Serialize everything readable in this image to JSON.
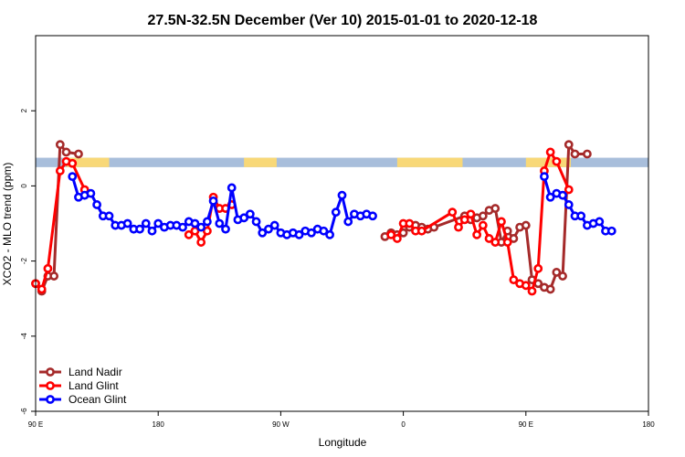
{
  "chart_data": {
    "type": "line",
    "title": "27.5N-32.5N December (Ver 10)   2015-01-01 to 2020-12-18",
    "xlabel": "Longitude",
    "ylabel": "XCO2 - MLO trend (ppm)",
    "xlim": [
      -90,
      210
    ],
    "ylim": [
      -6,
      4
    ],
    "xticks": [
      {
        "value": -90,
        "label": "90 E"
      },
      {
        "value": -30,
        "label": "180"
      },
      {
        "value": 30,
        "label": "90 W"
      },
      {
        "value": 90,
        "label": "0"
      },
      {
        "value": 150,
        "label": "90 E"
      },
      {
        "value": 210,
        "label": "180"
      }
    ],
    "yticks": [
      {
        "value": -6,
        "label": "-6"
      },
      {
        "value": -4,
        "label": "-4"
      },
      {
        "value": -2,
        "label": "-2"
      },
      {
        "value": 0,
        "label": "0"
      },
      {
        "value": 2,
        "label": "2"
      }
    ],
    "grid": false,
    "legend_position": "bottom-left",
    "background_band": {
      "y_range": [
        0.5,
        0.75
      ],
      "ocean_color": "#a8bedb",
      "land_color": "#f8d878",
      "land_segments": [
        [
          -75,
          -54
        ],
        [
          12,
          28
        ],
        [
          87,
          119
        ],
        [
          150,
          172
        ]
      ]
    },
    "series": [
      {
        "name": "Land Nadir",
        "color": "#a52a2a",
        "points": [
          [
            -90,
            -2.6
          ],
          [
            -87,
            -2.8
          ],
          [
            -84,
            -2.4
          ],
          [
            -81,
            -2.4
          ],
          [
            -78,
            1.1
          ],
          [
            -75,
            0.9
          ],
          [
            -69,
            0.85
          ],
          [
            81,
            -1.35
          ],
          [
            84,
            -1.25
          ],
          [
            87,
            -1.3
          ],
          [
            90,
            -1.25
          ],
          [
            93,
            -1.1
          ],
          [
            96,
            -1.05
          ],
          [
            99,
            -1.1
          ],
          [
            102,
            -1.15
          ],
          [
            105,
            -1.1
          ],
          [
            120,
            -0.8
          ],
          [
            123,
            -0.9
          ],
          [
            126,
            -0.85
          ],
          [
            129,
            -0.8
          ],
          [
            132,
            -0.65
          ],
          [
            135,
            -0.6
          ],
          [
            138,
            -1.5
          ],
          [
            141,
            -1.2
          ],
          [
            144,
            -1.4
          ],
          [
            147,
            -1.1
          ],
          [
            150,
            -1.05
          ],
          [
            153,
            -2.5
          ],
          [
            156,
            -2.6
          ],
          [
            159,
            -2.7
          ],
          [
            162,
            -2.75
          ],
          [
            165,
            -2.3
          ],
          [
            168,
            -2.4
          ],
          [
            171,
            1.1
          ],
          [
            174,
            0.85
          ],
          [
            180,
            0.85
          ]
        ]
      },
      {
        "name": "Land Glint",
        "color": "#ff0000",
        "points": [
          [
            -90,
            -2.6
          ],
          [
            -87,
            -2.75
          ],
          [
            -84,
            -2.2
          ],
          [
            -78,
            0.4
          ],
          [
            -75,
            0.65
          ],
          [
            -72,
            0.6
          ],
          [
            -66,
            -0.1
          ],
          [
            -15,
            -1.3
          ],
          [
            -12,
            -1.2
          ],
          [
            -9,
            -1.5
          ],
          [
            -6,
            -1.2
          ],
          [
            -3,
            -0.3
          ],
          [
            0,
            -0.6
          ],
          [
            3,
            -0.6
          ],
          [
            6,
            -0.5
          ],
          [
            84,
            -1.3
          ],
          [
            87,
            -1.4
          ],
          [
            90,
            -1.0
          ],
          [
            93,
            -1.0
          ],
          [
            96,
            -1.2
          ],
          [
            99,
            -1.2
          ],
          [
            114,
            -0.7
          ],
          [
            117,
            -1.1
          ],
          [
            120,
            -0.9
          ],
          [
            123,
            -0.75
          ],
          [
            126,
            -1.3
          ],
          [
            129,
            -1.05
          ],
          [
            132,
            -1.4
          ],
          [
            135,
            -1.5
          ],
          [
            138,
            -0.95
          ],
          [
            141,
            -1.5
          ],
          [
            144,
            -2.5
          ],
          [
            147,
            -2.6
          ],
          [
            150,
            -2.65
          ],
          [
            153,
            -2.8
          ],
          [
            156,
            -2.2
          ],
          [
            159,
            0.4
          ],
          [
            162,
            0.9
          ],
          [
            165,
            0.65
          ],
          [
            171,
            -0.1
          ]
        ]
      },
      {
        "name": "Ocean Glint",
        "color": "#0000ff",
        "points": [
          [
            -72,
            0.25
          ],
          [
            -69,
            -0.3
          ],
          [
            -66,
            -0.25
          ],
          [
            -63,
            -0.2
          ],
          [
            -60,
            -0.5
          ],
          [
            -57,
            -0.8
          ],
          [
            -54,
            -0.8
          ],
          [
            -51,
            -1.05
          ],
          [
            -48,
            -1.05
          ],
          [
            -45,
            -1.0
          ],
          [
            -42,
            -1.15
          ],
          [
            -39,
            -1.15
          ],
          [
            -36,
            -1.0
          ],
          [
            -33,
            -1.2
          ],
          [
            -30,
            -1.0
          ],
          [
            -27,
            -1.1
          ],
          [
            -24,
            -1.05
          ],
          [
            -21,
            -1.05
          ],
          [
            -18,
            -1.1
          ],
          [
            -15,
            -0.95
          ],
          [
            -12,
            -1.0
          ],
          [
            -9,
            -1.1
          ],
          [
            -6,
            -0.95
          ],
          [
            -3,
            -0.4
          ],
          [
            0,
            -1.0
          ],
          [
            3,
            -1.15
          ],
          [
            6,
            -0.05
          ],
          [
            9,
            -0.9
          ],
          [
            12,
            -0.85
          ],
          [
            15,
            -0.75
          ],
          [
            18,
            -0.95
          ],
          [
            21,
            -1.25
          ],
          [
            24,
            -1.15
          ],
          [
            27,
            -1.05
          ],
          [
            30,
            -1.25
          ],
          [
            33,
            -1.3
          ],
          [
            36,
            -1.25
          ],
          [
            39,
            -1.3
          ],
          [
            42,
            -1.2
          ],
          [
            45,
            -1.25
          ],
          [
            48,
            -1.15
          ],
          [
            51,
            -1.2
          ],
          [
            54,
            -1.3
          ],
          [
            57,
            -0.7
          ],
          [
            60,
            -0.25
          ],
          [
            63,
            -0.95
          ],
          [
            66,
            -0.75
          ],
          [
            69,
            -0.8
          ],
          [
            72,
            -0.75
          ],
          [
            75,
            -0.8
          ],
          [
            159,
            0.25
          ],
          [
            162,
            -0.3
          ],
          [
            165,
            -0.2
          ],
          [
            168,
            -0.25
          ],
          [
            171,
            -0.5
          ],
          [
            174,
            -0.8
          ],
          [
            177,
            -0.8
          ],
          [
            180,
            -1.05
          ],
          [
            183,
            -1.0
          ],
          [
            186,
            -0.95
          ],
          [
            189,
            -1.2
          ],
          [
            192,
            -1.2
          ]
        ]
      }
    ]
  }
}
